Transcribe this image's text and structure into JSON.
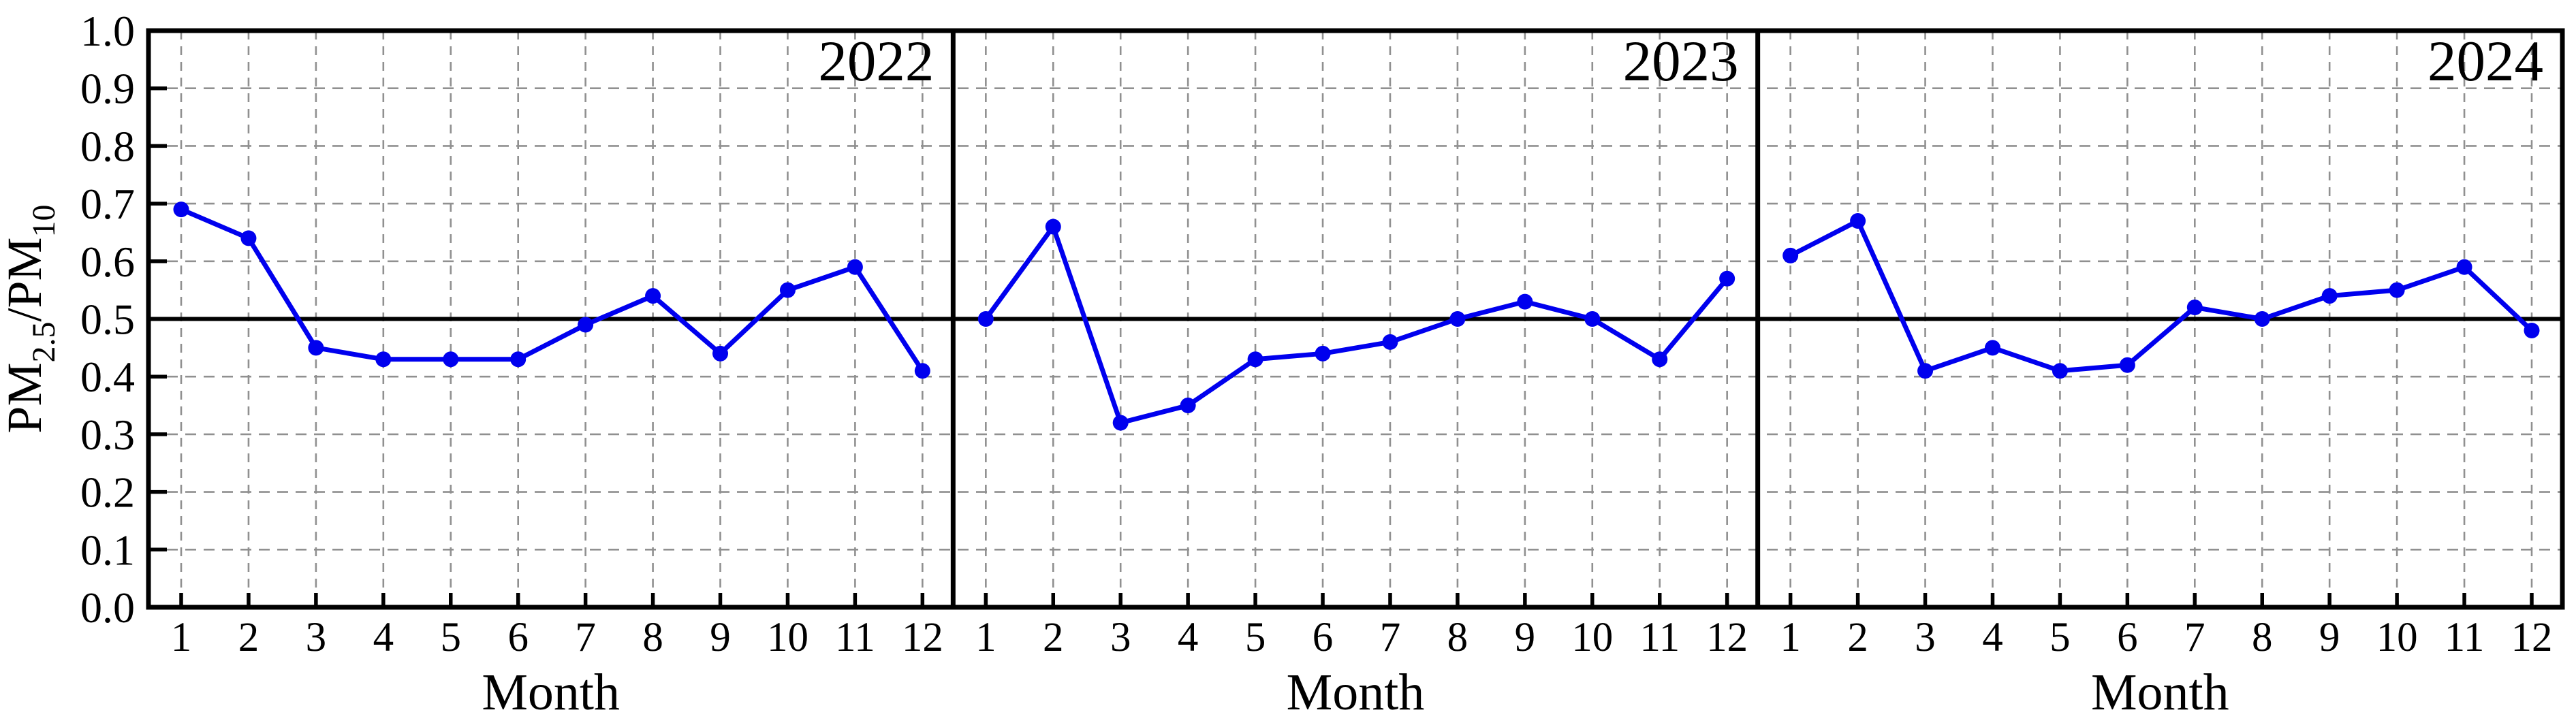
{
  "figure": {
    "background": "#ffffff",
    "colors": {
      "line": "#0000EE",
      "marker": "#0000EE",
      "grid": "#909090",
      "frame": "#000000",
      "refline": "#000000",
      "text": "#000000"
    },
    "ylabel_parts": [
      {
        "text": "PM",
        "sub": false
      },
      {
        "text": "2.5",
        "sub": true
      },
      {
        "text": "/PM",
        "sub": false
      },
      {
        "text": "10",
        "sub": true
      }
    ]
  },
  "chart_data": {
    "type": "line",
    "title": "",
    "xlabel": "Month",
    "ylabel": "PM2.5/PM10",
    "x": [
      1,
      2,
      3,
      4,
      5,
      6,
      7,
      8,
      9,
      10,
      11,
      12
    ],
    "xtick_labels": [
      "1",
      "2",
      "3",
      "4",
      "5",
      "6",
      "7",
      "8",
      "9",
      "10",
      "11",
      "12"
    ],
    "ylim": [
      0.0,
      1.0
    ],
    "ytick_step": 0.1,
    "ytick_labels": [
      "0.0",
      "0.1",
      "0.2",
      "0.3",
      "0.4",
      "0.5",
      "0.6",
      "0.7",
      "0.8",
      "0.9",
      "1.0"
    ],
    "grid": true,
    "grid_style": "dashed",
    "reference_line": 0.5,
    "legend_position": "none",
    "panel_year_label_position": "top-right",
    "series": [
      {
        "name": "2022",
        "values": [
          0.69,
          0.64,
          0.45,
          0.43,
          0.43,
          0.43,
          0.49,
          0.54,
          0.44,
          0.55,
          0.59,
          0.41
        ]
      },
      {
        "name": "2023",
        "values": [
          0.5,
          0.66,
          0.32,
          0.35,
          0.43,
          0.44,
          0.46,
          0.5,
          0.53,
          0.5,
          0.43,
          0.57
        ]
      },
      {
        "name": "2024",
        "values": [
          0.61,
          0.67,
          0.41,
          0.45,
          0.41,
          0.42,
          0.52,
          0.5,
          0.54,
          0.55,
          0.59,
          0.48
        ]
      }
    ]
  }
}
